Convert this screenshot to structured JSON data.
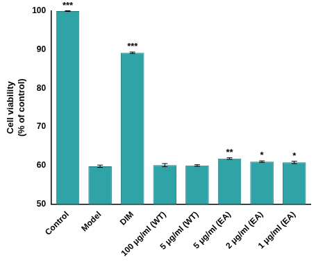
{
  "chart_data": {
    "type": "bar",
    "y_label": [
      "Cell viability",
      "(% of control)"
    ],
    "categories": [
      "Control",
      "Model",
      "DIM",
      "100 μg/ml (WT)",
      "5 μg/ml (WT)",
      "5 μg/ml (EA)",
      "2 μg/ml (EA)",
      "1 μg/ml (EA)"
    ],
    "values": [
      100,
      59.8,
      89.2,
      60.1,
      60.0,
      61.8,
      61.0,
      60.8
    ],
    "errors": [
      0.1,
      0.3,
      0.2,
      0.4,
      0.2,
      0.2,
      0.2,
      0.3
    ],
    "annotations": [
      "***",
      null,
      "***",
      null,
      null,
      "**",
      "*",
      "*"
    ],
    "color": "#2fa3a6",
    "ylim": [
      50,
      100
    ],
    "yticks": [
      50,
      60,
      70,
      80,
      90,
      100
    ],
    "grid": false
  }
}
